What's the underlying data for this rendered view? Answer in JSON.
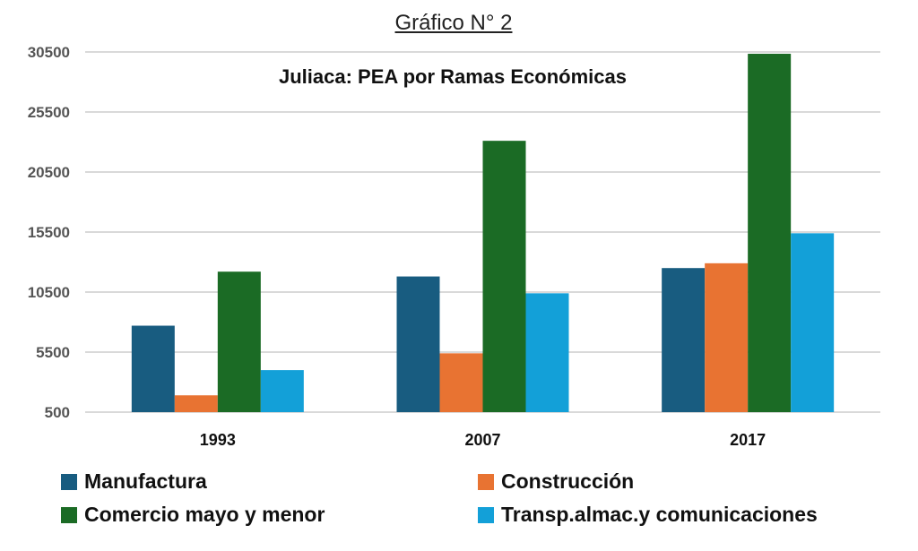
{
  "supertitle": "Gráfico  N° 2",
  "chart_data": {
    "type": "bar",
    "title": "Juliaca: PEA por Ramas Económicas",
    "xlabel": "",
    "ylabel": "",
    "categories": [
      "1993",
      "2007",
      "2017"
    ],
    "yticks": [
      "500",
      "5500",
      "10500",
      "15500",
      "20500",
      "25500",
      "30500"
    ],
    "ylim": [
      500,
      30500
    ],
    "grid": true,
    "legend_position": "bottom",
    "series": [
      {
        "name": "Manufactura",
        "color": "#185c80",
        "values": [
          7700,
          11800,
          12500
        ]
      },
      {
        "name": "Construcción",
        "color": "#e87332",
        "values": [
          1900,
          5400,
          12900
        ]
      },
      {
        "name": "Comercio mayo y menor",
        "color": "#1b6b25",
        "values": [
          12200,
          23100,
          30350
        ]
      },
      {
        "name": "Transp.almac.y comunicaciones",
        "color": "#13a0d8",
        "values": [
          4000,
          10400,
          15400
        ]
      }
    ]
  }
}
